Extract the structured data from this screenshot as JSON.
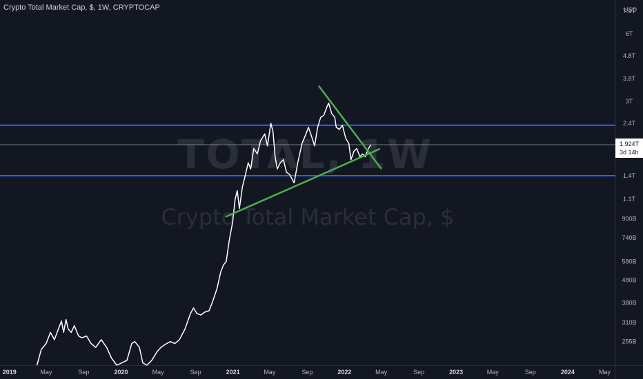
{
  "legend_text": "Crypto Total Market Cap, $, 1W, CRYPTOCAP",
  "watermark": {
    "symbol": "TOTAL, 1W",
    "description": "Crypto Total Market Cap, $"
  },
  "currency_label": "USD",
  "colors": {
    "background": "#131722",
    "price_line": "#ffffff",
    "trendline": "#4caf50",
    "horizontal_level": "#2962ff",
    "price_label_bg": "#ffffff",
    "price_label_text": "#131722"
  },
  "chart_data": {
    "type": "line",
    "xlim": [
      "2018-12-01",
      "2024-06-05"
    ],
    "ylim_scale": "log",
    "ylim": [
      200000000000,
      8500000000000
    ],
    "y_ticks": [
      {
        "value": 255000000000,
        "label": "255B"
      },
      {
        "value": 310000000000,
        "label": "310B"
      },
      {
        "value": 380000000000,
        "label": "380B"
      },
      {
        "value": 480000000000,
        "label": "480B"
      },
      {
        "value": 580000000000,
        "label": "580B"
      },
      {
        "value": 740000000000,
        "label": "740B"
      },
      {
        "value": 900000000000,
        "label": "900B"
      },
      {
        "value": 1100000000000,
        "label": "1.1T"
      },
      {
        "value": 1400000000000,
        "label": "1.4T"
      },
      {
        "value": 2400000000000,
        "label": "2.4T"
      },
      {
        "value": 3000000000000,
        "label": "3T"
      },
      {
        "value": 3800000000000,
        "label": "3.8T"
      },
      {
        "value": 4800000000000,
        "label": "4.8T"
      },
      {
        "value": 6000000000000,
        "label": "6T"
      },
      {
        "value": 7600000000000,
        "label": "7.6T"
      }
    ],
    "x_ticks": [
      {
        "date": "2019-01-01",
        "label": "2019",
        "bold": true
      },
      {
        "date": "2019-05-01",
        "label": "May",
        "bold": false
      },
      {
        "date": "2019-09-01",
        "label": "Sep",
        "bold": false
      },
      {
        "date": "2020-01-01",
        "label": "2020",
        "bold": true
      },
      {
        "date": "2020-05-01",
        "label": "May",
        "bold": false
      },
      {
        "date": "2020-09-01",
        "label": "Sep",
        "bold": false
      },
      {
        "date": "2021-01-01",
        "label": "2021",
        "bold": true
      },
      {
        "date": "2021-05-01",
        "label": "May",
        "bold": false
      },
      {
        "date": "2021-09-01",
        "label": "Sep",
        "bold": false
      },
      {
        "date": "2022-01-01",
        "label": "2022",
        "bold": true
      },
      {
        "date": "2022-05-01",
        "label": "May",
        "bold": false
      },
      {
        "date": "2022-09-01",
        "label": "Sep",
        "bold": false
      },
      {
        "date": "2023-01-01",
        "label": "2023",
        "bold": true
      },
      {
        "date": "2023-05-01",
        "label": "May",
        "bold": false
      },
      {
        "date": "2023-09-01",
        "label": "Sep",
        "bold": false
      },
      {
        "date": "2024-01-01",
        "label": "2024",
        "bold": true
      },
      {
        "date": "2024-05-01",
        "label": "May",
        "bold": false
      }
    ],
    "series": [
      {
        "points": [
          [
            "2019-04-01",
            200000000000
          ],
          [
            "2019-04-15",
            235000000000
          ],
          [
            "2019-05-01",
            250000000000
          ],
          [
            "2019-05-15",
            280000000000
          ],
          [
            "2019-05-28",
            260000000000
          ],
          [
            "2019-06-10",
            290000000000
          ],
          [
            "2019-06-20",
            315000000000
          ],
          [
            "2019-06-27",
            280000000000
          ],
          [
            "2019-07-05",
            320000000000
          ],
          [
            "2019-07-12",
            290000000000
          ],
          [
            "2019-07-22",
            280000000000
          ],
          [
            "2019-08-01",
            300000000000
          ],
          [
            "2019-08-15",
            270000000000
          ],
          [
            "2019-08-26",
            265000000000
          ],
          [
            "2019-09-10",
            270000000000
          ],
          [
            "2019-09-25",
            250000000000
          ],
          [
            "2019-10-10",
            240000000000
          ],
          [
            "2019-10-28",
            260000000000
          ],
          [
            "2019-11-15",
            240000000000
          ],
          [
            "2019-12-01",
            215000000000
          ],
          [
            "2019-12-18",
            200000000000
          ],
          [
            "2020-01-20",
            210000000000
          ],
          [
            "2020-02-05",
            250000000000
          ],
          [
            "2020-02-15",
            255000000000
          ],
          [
            "2020-03-01",
            240000000000
          ],
          [
            "2020-03-12",
            205000000000
          ],
          [
            "2020-03-25",
            200000000000
          ],
          [
            "2020-04-10",
            210000000000
          ],
          [
            "2020-04-28",
            230000000000
          ],
          [
            "2020-05-10",
            240000000000
          ],
          [
            "2020-05-25",
            248000000000
          ],
          [
            "2020-06-10",
            255000000000
          ],
          [
            "2020-06-25",
            250000000000
          ],
          [
            "2020-07-10",
            260000000000
          ],
          [
            "2020-07-28",
            290000000000
          ],
          [
            "2020-08-15",
            340000000000
          ],
          [
            "2020-08-25",
            360000000000
          ],
          [
            "2020-09-05",
            340000000000
          ],
          [
            "2020-09-18",
            335000000000
          ],
          [
            "2020-10-01",
            345000000000
          ],
          [
            "2020-10-15",
            350000000000
          ],
          [
            "2020-10-28",
            390000000000
          ],
          [
            "2020-11-10",
            440000000000
          ],
          [
            "2020-11-22",
            520000000000
          ],
          [
            "2020-12-01",
            560000000000
          ],
          [
            "2020-12-10",
            580000000000
          ],
          [
            "2020-12-20",
            720000000000
          ],
          [
            "2020-12-31",
            870000000000
          ],
          [
            "2021-01-08",
            1100000000000
          ],
          [
            "2021-01-15",
            1200000000000
          ],
          [
            "2021-01-22",
            1000000000000
          ],
          [
            "2021-02-01",
            1250000000000
          ],
          [
            "2021-02-10",
            1400000000000
          ],
          [
            "2021-02-20",
            1600000000000
          ],
          [
            "2021-02-28",
            1500000000000
          ],
          [
            "2021-03-10",
            1850000000000
          ],
          [
            "2021-03-22",
            1750000000000
          ],
          [
            "2021-04-01",
            2000000000000
          ],
          [
            "2021-04-15",
            2150000000000
          ],
          [
            "2021-04-24",
            1900000000000
          ],
          [
            "2021-05-05",
            2400000000000
          ],
          [
            "2021-05-12",
            2200000000000
          ],
          [
            "2021-05-19",
            1700000000000
          ],
          [
            "2021-05-26",
            1500000000000
          ],
          [
            "2021-06-05",
            1600000000000
          ],
          [
            "2021-06-15",
            1650000000000
          ],
          [
            "2021-06-25",
            1450000000000
          ],
          [
            "2021-07-05",
            1420000000000
          ],
          [
            "2021-07-20",
            1300000000000
          ],
          [
            "2021-08-01",
            1600000000000
          ],
          [
            "2021-08-15",
            1950000000000
          ],
          [
            "2021-08-25",
            2100000000000
          ],
          [
            "2021-09-05",
            2300000000000
          ],
          [
            "2021-09-15",
            2100000000000
          ],
          [
            "2021-09-25",
            1900000000000
          ],
          [
            "2021-10-05",
            2300000000000
          ],
          [
            "2021-10-15",
            2550000000000
          ],
          [
            "2021-10-25",
            2600000000000
          ],
          [
            "2021-11-05",
            2850000000000
          ],
          [
            "2021-11-10",
            2950000000000
          ],
          [
            "2021-11-20",
            2650000000000
          ],
          [
            "2021-11-30",
            2550000000000
          ],
          [
            "2021-12-05",
            2300000000000
          ],
          [
            "2021-12-15",
            2250000000000
          ],
          [
            "2021-12-25",
            2350000000000
          ],
          [
            "2022-01-05",
            2050000000000
          ],
          [
            "2022-01-15",
            1950000000000
          ],
          [
            "2022-01-22",
            1650000000000
          ],
          [
            "2022-02-01",
            1800000000000
          ],
          [
            "2022-02-10",
            1850000000000
          ],
          [
            "2022-02-20",
            1700000000000
          ],
          [
            "2022-03-01",
            1750000000000
          ],
          [
            "2022-03-10",
            1700000000000
          ],
          [
            "2022-03-20",
            1850000000000
          ],
          [
            "2022-03-28",
            1924000000000
          ]
        ]
      }
    ],
    "horizontal_levels": [
      2350000000000,
      1400000000000
    ],
    "trendlines": [
      {
        "from": [
          "2021-10-10",
          3500000000000
        ],
        "to": [
          "2022-04-30",
          1510000000000
        ]
      },
      {
        "from": [
          "2020-12-10",
          920000000000
        ],
        "to": [
          "2022-04-25",
          1840000000000
        ]
      }
    ],
    "last_value": {
      "value": 1924000000000,
      "label": "1.924T",
      "countdown": "3d 14h"
    }
  }
}
